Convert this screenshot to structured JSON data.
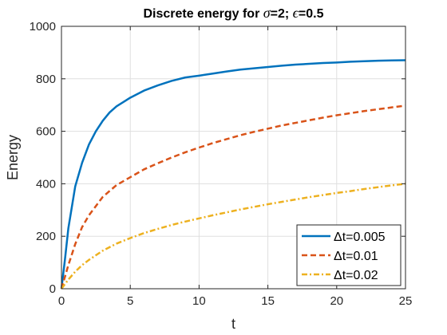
{
  "chart_data": {
    "type": "line",
    "title": {
      "prefix": "Discrete energy for ",
      "sym1": "σ",
      "mid": "=2; ",
      "sym2": "ϵ",
      "suffix": "=0.5"
    },
    "xlabel": "t",
    "ylabel": "Energy",
    "xlim": [
      0,
      25
    ],
    "ylim": [
      0,
      1000
    ],
    "xticks": [
      0,
      5,
      10,
      15,
      20,
      25
    ],
    "yticks": [
      0,
      200,
      400,
      600,
      800,
      1000
    ],
    "xtick_labels": [
      "0",
      "5",
      "10",
      "15",
      "20",
      "25"
    ],
    "ytick_labels": [
      "0",
      "200",
      "400",
      "600",
      "800",
      "1000"
    ],
    "grid": true,
    "box": true,
    "legend_position": "bottom-right",
    "series": [
      {
        "name": "Δt=0.005",
        "color": "#0072BD",
        "style": "solid",
        "x": [
          0,
          0.25,
          0.5,
          1,
          1.5,
          2,
          2.5,
          3,
          3.5,
          4,
          5,
          6,
          7,
          8,
          9,
          10,
          11,
          12,
          13,
          14,
          15,
          16,
          17,
          18,
          19,
          20,
          21,
          22,
          23,
          24,
          25
        ],
        "y": [
          0,
          110,
          230,
          390,
          480,
          550,
          600,
          640,
          672,
          695,
          728,
          755,
          775,
          792,
          805,
          812,
          820,
          828,
          835,
          840,
          845,
          850,
          854,
          857,
          860,
          862,
          865,
          867,
          869,
          870,
          871
        ]
      },
      {
        "name": "Δt=0.01",
        "color": "#D95319",
        "style": "dashed",
        "x": [
          0,
          0.5,
          1,
          1.5,
          2,
          3,
          4,
          5,
          6,
          7,
          8,
          9,
          10,
          11,
          12,
          13,
          14,
          15,
          16,
          17,
          18,
          19,
          20,
          21,
          22,
          23,
          24,
          25
        ],
        "y": [
          0,
          90,
          170,
          235,
          280,
          350,
          395,
          425,
          455,
          478,
          500,
          520,
          538,
          555,
          570,
          585,
          598,
          610,
          622,
          632,
          642,
          652,
          661,
          669,
          677,
          684,
          691,
          698
        ]
      },
      {
        "name": "Δt=0.02",
        "color": "#EDB120",
        "style": "dashdot",
        "x": [
          0,
          0.5,
          1,
          1.5,
          2,
          3,
          4,
          5,
          6,
          7,
          8,
          9,
          10,
          11,
          12,
          13,
          14,
          15,
          16,
          17,
          18,
          19,
          20,
          21,
          22,
          23,
          24,
          25
        ],
        "y": [
          0,
          35,
          65,
          90,
          110,
          145,
          172,
          193,
          212,
          228,
          243,
          256,
          268,
          280,
          291,
          302,
          312,
          322,
          331,
          340,
          349,
          357,
          365,
          372,
          380,
          387,
          394,
          400
        ]
      }
    ]
  }
}
